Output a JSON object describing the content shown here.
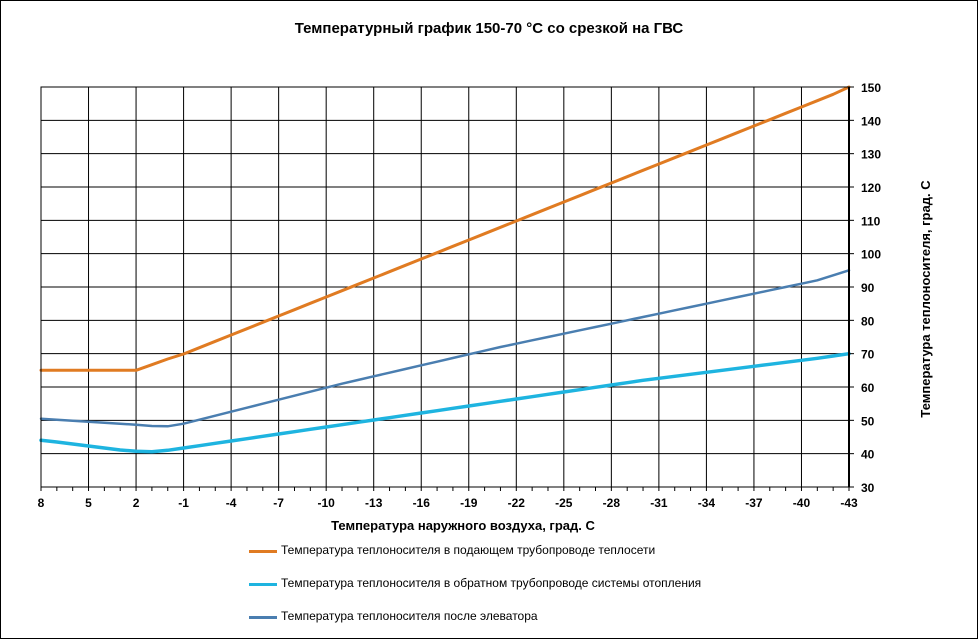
{
  "chart_data": {
    "type": "line",
    "title": "Температурный график 150-70 °С со срезкой на ГВС",
    "xlabel": "Температура наружного воздуха, град. С",
    "ylabel": "Температура теплоносителя, град. С",
    "x_categories": [
      "8",
      "7",
      "6",
      "5",
      "4",
      "3",
      "2",
      "1",
      "0",
      "-1",
      "-2",
      "-3",
      "-4",
      "-5",
      "-6",
      "-7",
      "-8",
      "-9",
      "-10",
      "-11",
      "-12",
      "-13",
      "-14",
      "-15",
      "-16",
      "-17",
      "-18",
      "-19",
      "-20",
      "-21",
      "-22",
      "-23",
      "-24",
      "-25",
      "-26",
      "-27",
      "-28",
      "-29",
      "-30",
      "-31",
      "-32",
      "-33",
      "-34",
      "-35",
      "-36",
      "-37",
      "-38",
      "-39",
      "-40",
      "-41",
      "-42",
      "-43"
    ],
    "x_tick_labels": [
      "8",
      "5",
      "2",
      "-1",
      "-4",
      "-7",
      "-10",
      "-13",
      "-16",
      "-19",
      "-22",
      "-25",
      "-28",
      "-31",
      "-34",
      "-37",
      "-40",
      "-43"
    ],
    "ylim": [
      30,
      150
    ],
    "y_ticks": [
      30,
      40,
      50,
      60,
      70,
      80,
      90,
      100,
      110,
      120,
      130,
      140,
      150
    ],
    "y_axis_position": "right",
    "grid": true,
    "legend_position": "bottom",
    "series": [
      {
        "name": "Температура теплоносителя в подающем трубопроводе теплосети",
        "color": "#E07B22",
        "values": [
          65,
          65,
          65,
          65,
          65,
          65,
          65.0,
          66.7,
          68.4,
          69.9,
          71.8,
          73.7,
          75.6,
          77.5,
          79.4,
          81.3,
          83.2,
          85.1,
          87.0,
          88.9,
          90.8,
          92.7,
          94.6,
          96.5,
          98.4,
          100.3,
          102.2,
          104.1,
          106.0,
          107.9,
          109.8,
          111.7,
          113.6,
          115.5,
          117.4,
          119.3,
          121.2,
          123.1,
          125.0,
          126.9,
          128.8,
          130.7,
          132.6,
          134.5,
          136.4,
          138.3,
          140.2,
          142.1,
          144.0,
          145.9,
          147.8,
          150.0
        ]
      },
      {
        "name": "Температура теплоносителя в обратном трубопроводе системы отопления",
        "color": "#1EB4E0",
        "values": [
          44.0,
          43.5,
          42.9,
          42.3,
          41.7,
          41.1,
          40.7,
          40.6,
          41.0,
          41.7,
          42.4,
          43.1,
          43.8,
          44.5,
          45.2,
          45.9,
          46.6,
          47.3,
          48.0,
          48.7,
          49.4,
          50.1,
          50.8,
          51.5,
          52.2,
          52.9,
          53.6,
          54.3,
          55.0,
          55.7,
          56.4,
          57.1,
          57.8,
          58.5,
          59.2,
          59.9,
          60.6,
          61.3,
          62.0,
          62.6,
          63.2,
          63.8,
          64.4,
          65.0,
          65.6,
          66.2,
          66.8,
          67.4,
          68.0,
          68.6,
          69.3,
          70.0
        ]
      },
      {
        "name": "Температура теплоносителя после элеватора",
        "color": "#4A7EB0",
        "values": [
          50.5,
          50.2,
          49.9,
          49.6,
          49.3,
          49.0,
          48.7,
          48.3,
          48.2,
          49.0,
          50.2,
          51.4,
          52.6,
          53.8,
          55.0,
          56.2,
          57.4,
          58.6,
          59.8,
          61.0,
          62.1,
          63.2,
          64.3,
          65.4,
          66.5,
          67.6,
          68.7,
          69.8,
          70.9,
          72.0,
          73.0,
          74.0,
          75.0,
          76.0,
          77.0,
          78.0,
          79.0,
          80.0,
          81.0,
          82.0,
          83.0,
          84.0,
          85.0,
          86.0,
          87.0,
          88.0,
          89.0,
          90.0,
          91.0,
          92.0,
          93.5,
          95.0
        ]
      }
    ]
  }
}
